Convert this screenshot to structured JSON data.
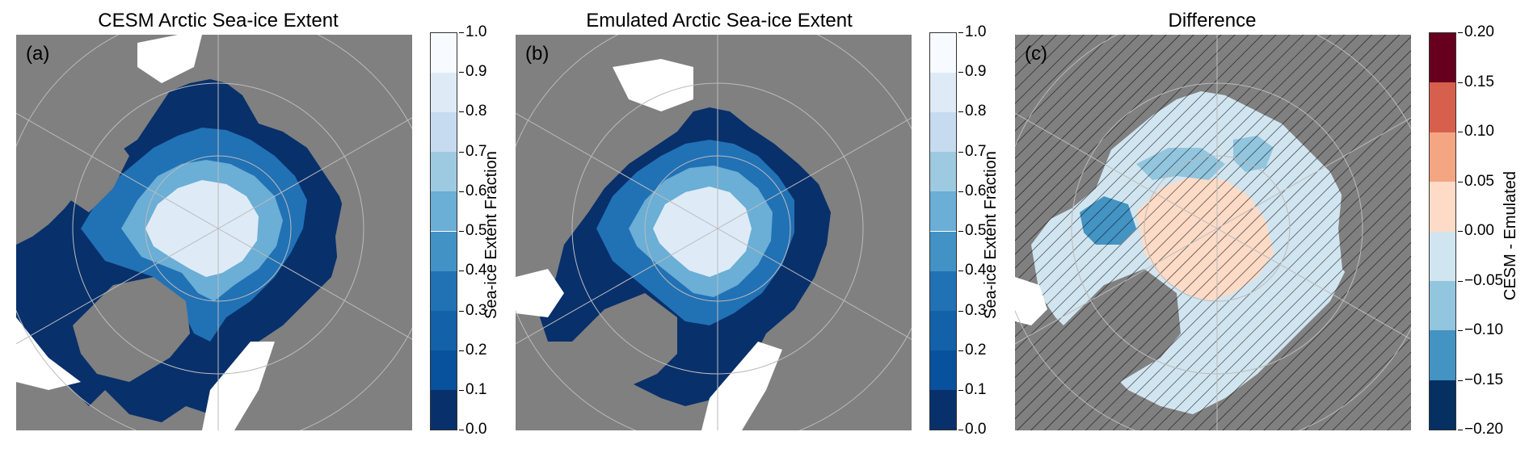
{
  "panels": [
    {
      "id": "a",
      "title": "CESM Arctic Sea-ice Extent",
      "letter": "(a)",
      "colorbar": {
        "label": "Sea-ice Extent Fraction",
        "ticks": [
          "1.0",
          "0.9",
          "0.8",
          "0.7",
          "0.6",
          "0.5",
          "0.4",
          "0.3",
          "0.2",
          "0.1",
          "0.0"
        ],
        "colors": [
          "#f7fbff",
          "#deebf7",
          "#c6dbef",
          "#9ecae1",
          "#6baed6",
          "#4292c6",
          "#2171b5",
          "#1361a9",
          "#08519c",
          "#08306b"
        ]
      }
    },
    {
      "id": "b",
      "title": "Emulated Arctic Sea-ice Extent",
      "letter": "(b)",
      "colorbar": {
        "label": "Sea-ice Extent Fraction",
        "ticks": [
          "1.0",
          "0.9",
          "0.8",
          "0.7",
          "0.6",
          "0.5",
          "0.4",
          "0.3",
          "0.2",
          "0.1",
          "0.0"
        ],
        "colors": [
          "#f7fbff",
          "#deebf7",
          "#c6dbef",
          "#9ecae1",
          "#6baed6",
          "#4292c6",
          "#2171b5",
          "#1361a9",
          "#08519c",
          "#08306b"
        ]
      }
    },
    {
      "id": "c",
      "title": "Difference",
      "letter": "(c)",
      "colorbar": {
        "label": "CESM - Emulated",
        "ticks": [
          "0.20",
          "0.15",
          "0.10",
          "0.05",
          "0.00",
          "−0.05",
          "−0.10",
          "−0.15",
          "−0.20"
        ],
        "colors": [
          "#67001f",
          "#d6604d",
          "#f4a582",
          "#fddbc7",
          "#d1e5f0",
          "#92c5de",
          "#4393c3",
          "#053061"
        ]
      }
    }
  ],
  "style": {
    "land_color": "#808080",
    "ocean_color": "#ffffff",
    "gridline_color": "#bbbbbb",
    "coastline_color": "#000000"
  }
}
